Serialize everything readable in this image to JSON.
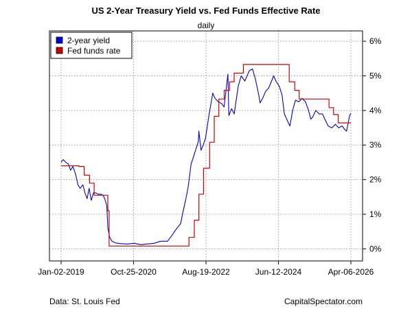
{
  "chart_data": {
    "type": "line",
    "title": "US 2-Year Treasury Yield vs. Fed Funds Effective Rate",
    "subtitle": "daily",
    "x_tick_labels": [
      "Jan-02-2019",
      "Oct-25-2020",
      "Aug-19-2022",
      "Jun-12-2024",
      "Apr-06-2026"
    ],
    "x_range": [
      "2019-01-02",
      "2026-04-06"
    ],
    "y_tick_labels": [
      "0%",
      "1%",
      "2%",
      "3%",
      "4%",
      "5%",
      "6%"
    ],
    "ylim": [
      -0.35,
      6.3
    ],
    "grid": true,
    "legend_position": "top-left",
    "series": [
      {
        "name": "2-year yield",
        "color": "#0000CC",
        "points": [
          [
            "2019-01-02",
            2.5
          ],
          [
            "2019-01-20",
            2.58
          ],
          [
            "2019-02-15",
            2.5
          ],
          [
            "2019-03-10",
            2.45
          ],
          [
            "2019-03-29",
            2.27
          ],
          [
            "2019-04-20",
            2.38
          ],
          [
            "2019-05-15",
            2.15
          ],
          [
            "2019-06-05",
            1.85
          ],
          [
            "2019-06-25",
            1.75
          ],
          [
            "2019-07-20",
            1.85
          ],
          [
            "2019-08-10",
            1.6
          ],
          [
            "2019-08-28",
            1.45
          ],
          [
            "2019-09-15",
            1.75
          ],
          [
            "2019-10-05",
            1.4
          ],
          [
            "2019-10-25",
            1.62
          ],
          [
            "2019-11-15",
            1.62
          ],
          [
            "2019-12-05",
            1.58
          ],
          [
            "2019-12-30",
            1.58
          ],
          [
            "2020-01-20",
            1.55
          ],
          [
            "2020-02-05",
            1.45
          ],
          [
            "2020-02-24",
            1.25
          ],
          [
            "2020-03-05",
            0.6
          ],
          [
            "2020-03-20",
            0.35
          ],
          [
            "2020-04-10",
            0.22
          ],
          [
            "2020-05-15",
            0.17
          ],
          [
            "2020-07-01",
            0.15
          ],
          [
            "2020-09-01",
            0.14
          ],
          [
            "2020-11-01",
            0.16
          ],
          [
            "2021-01-01",
            0.12
          ],
          [
            "2021-03-01",
            0.14
          ],
          [
            "2021-05-01",
            0.16
          ],
          [
            "2021-07-01",
            0.22
          ],
          [
            "2021-09-01",
            0.22
          ],
          [
            "2021-10-15",
            0.4
          ],
          [
            "2021-11-15",
            0.55
          ],
          [
            "2021-12-31",
            0.73
          ],
          [
            "2022-01-20",
            1.05
          ],
          [
            "2022-02-20",
            1.5
          ],
          [
            "2022-03-10",
            1.8
          ],
          [
            "2022-04-05",
            2.45
          ],
          [
            "2022-05-01",
            2.7
          ],
          [
            "2022-06-10",
            3.1
          ],
          [
            "2022-06-15",
            3.4
          ],
          [
            "2022-07-05",
            2.85
          ],
          [
            "2022-07-25",
            3.0
          ],
          [
            "2022-08-15",
            3.2
          ],
          [
            "2022-09-15",
            3.85
          ],
          [
            "2022-10-20",
            4.5
          ],
          [
            "2022-11-10",
            4.35
          ],
          [
            "2022-12-10",
            4.25
          ],
          [
            "2023-01-10",
            4.2
          ],
          [
            "2023-02-01",
            4.1
          ],
          [
            "2023-03-08",
            5.05
          ],
          [
            "2023-03-17",
            3.85
          ],
          [
            "2023-04-10",
            4.05
          ],
          [
            "2023-05-05",
            3.9
          ],
          [
            "2023-06-10",
            4.7
          ],
          [
            "2023-07-07",
            5.0
          ],
          [
            "2023-08-10",
            4.85
          ],
          [
            "2023-09-20",
            5.15
          ],
          [
            "2023-10-19",
            5.2
          ],
          [
            "2023-11-15",
            4.9
          ],
          [
            "2023-12-15",
            4.45
          ],
          [
            "2023-12-27",
            4.22
          ],
          [
            "2024-01-20",
            4.35
          ],
          [
            "2024-02-15",
            4.55
          ],
          [
            "2024-03-15",
            4.65
          ],
          [
            "2024-04-30",
            5.0
          ],
          [
            "2024-05-20",
            4.85
          ],
          [
            "2024-06-20",
            4.7
          ],
          [
            "2024-07-15",
            4.45
          ],
          [
            "2024-08-05",
            3.9
          ],
          [
            "2024-09-10",
            3.65
          ],
          [
            "2024-09-25",
            3.55
          ],
          [
            "2024-10-20",
            4.0
          ],
          [
            "2024-11-15",
            4.3
          ],
          [
            "2024-12-15",
            4.25
          ],
          [
            "2025-01-15",
            4.35
          ],
          [
            "2025-02-15",
            4.25
          ],
          [
            "2025-03-15",
            4.0
          ],
          [
            "2025-04-05",
            3.75
          ],
          [
            "2025-04-20",
            3.8
          ],
          [
            "2025-05-20",
            4.0
          ],
          [
            "2025-06-20",
            3.9
          ],
          [
            "2025-07-20",
            3.9
          ],
          [
            "2025-08-10",
            3.75
          ],
          [
            "2025-09-10",
            3.55
          ],
          [
            "2025-10-15",
            3.5
          ],
          [
            "2025-11-15",
            3.6
          ],
          [
            "2025-12-15",
            3.5
          ],
          [
            "2026-01-15",
            3.55
          ],
          [
            "2026-02-10",
            3.45
          ],
          [
            "2026-02-25",
            3.4
          ],
          [
            "2026-03-10",
            3.6
          ],
          [
            "2026-03-25",
            3.85
          ],
          [
            "2026-04-06",
            3.92
          ]
        ]
      },
      {
        "name": "Fed funds rate",
        "color": "#CC0000",
        "step": true,
        "points": [
          [
            "2019-01-02",
            2.4
          ],
          [
            "2019-06-15",
            2.38
          ],
          [
            "2019-08-01",
            2.13
          ],
          [
            "2019-09-19",
            1.9
          ],
          [
            "2019-10-31",
            1.55
          ],
          [
            "2020-03-04",
            1.1
          ],
          [
            "2020-03-16",
            0.08
          ],
          [
            "2021-06-17",
            0.08
          ],
          [
            "2022-03-17",
            0.33
          ],
          [
            "2022-05-05",
            0.83
          ],
          [
            "2022-06-16",
            1.58
          ],
          [
            "2022-07-28",
            2.33
          ],
          [
            "2022-09-22",
            3.08
          ],
          [
            "2022-11-03",
            3.83
          ],
          [
            "2022-12-15",
            4.33
          ],
          [
            "2023-02-02",
            4.58
          ],
          [
            "2023-03-23",
            4.83
          ],
          [
            "2023-05-04",
            5.08
          ],
          [
            "2023-07-27",
            5.33
          ],
          [
            "2024-09-19",
            4.83
          ],
          [
            "2024-11-08",
            4.58
          ],
          [
            "2024-12-19",
            4.33
          ],
          [
            "2025-09-18",
            4.08
          ],
          [
            "2025-10-30",
            3.88
          ],
          [
            "2025-12-11",
            3.64
          ],
          [
            "2026-04-06",
            3.64
          ]
        ]
      }
    ]
  },
  "footer": {
    "source": "Data: St. Louis Fed",
    "brand": "CapitalSpectator.com"
  }
}
